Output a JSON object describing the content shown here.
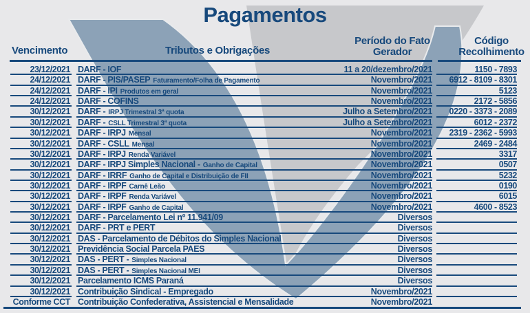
{
  "title": "Pagamentos",
  "header": {
    "vencimento": "Vencimento",
    "tributos": "Tributos e Obrigações",
    "periodo_line1": "Período do Fato",
    "periodo_line2": "Gerador",
    "codigo_line1": "Código",
    "codigo_line2": "Recolhimento"
  },
  "rows": [
    {
      "date": "23/12/2021",
      "name": "DARF - IOF",
      "sub": "",
      "period": "11 a 20/dezembro/2021",
      "code": "1150 - 7893"
    },
    {
      "date": "24/12/2021",
      "name": "DARF - PIS/PASEP",
      "sub": "Faturamento/Folha de Pagamento",
      "period": "Novembro/2021",
      "code": "6912 - 8109 - 8301"
    },
    {
      "date": "24/12/2021",
      "name": "DARF - IPI",
      "sub": "Produtos em geral",
      "period": "Novembro/2021",
      "code": "5123"
    },
    {
      "date": "24/12/2021",
      "name": "DARF - COFINS",
      "sub": "",
      "period": "Novembro/2021",
      "code": "2172 - 5856"
    },
    {
      "date": "30/12/2021",
      "name": "DARF -",
      "sub": "IRPJ Trimestral 3ª quota",
      "period": "Julho a Setembro/2021",
      "code": "0220 - 3373 - 2089"
    },
    {
      "date": "30/12/2021",
      "name": "DARF -",
      "sub": "CSLL Trimestral 3ª quota",
      "period": "Julho a Setembro/2021",
      "code": "6012 - 2372"
    },
    {
      "date": "30/12/2021",
      "name": "DARF - IRPJ",
      "sub": "Mensal",
      "period": "Novembro/2021",
      "code": "2319 - 2362 - 5993"
    },
    {
      "date": "30/12/2021",
      "name": "DARF - CSLL",
      "sub": "Mensal",
      "period": "Novembro/2021",
      "code": "2469 - 2484"
    },
    {
      "date": "30/12/2021",
      "name": "DARF - IRPJ",
      "sub": "Renda Variável",
      "period": "Novembro/2021",
      "code": "3317"
    },
    {
      "date": "30/12/2021",
      "name": "DARF - IRPJ Simples Nacional -",
      "sub": "Ganho de Capital",
      "period": "Novembro/2021",
      "code": "0507"
    },
    {
      "date": "30/12/2021",
      "name": "DARF - IRRF",
      "sub": "Ganho de Capital e Distribuição de FII",
      "period": "Novembro/2021",
      "code": "5232"
    },
    {
      "date": "30/12/2021",
      "name": "DARF - IRPF",
      "sub": "Carnê Leão",
      "period": "Novembro/2021",
      "code": "0190"
    },
    {
      "date": "30/12/2021",
      "name": "DARF - IRPF",
      "sub": "Renda Variável",
      "period": "Novembro/2021",
      "code": "6015"
    },
    {
      "date": "30/12/2021",
      "name": "DARF - IRPF",
      "sub": "Ganho de Capital",
      "period": "Novembro/2021",
      "code": "4600 - 8523"
    },
    {
      "date": "30/12/2021",
      "name": "DARF - Parcelamento Lei nº 11.941/09",
      "sub": "",
      "period": "Diversos",
      "code": ""
    },
    {
      "date": "30/12/2021",
      "name": "DARF - PRT e PERT",
      "sub": "",
      "period": "Diversos",
      "code": ""
    },
    {
      "date": "30/12/2021",
      "name": "DAS - Parcelamento de Débitos do Simples Nacional",
      "sub": "",
      "period": "Diversos",
      "code": ""
    },
    {
      "date": "30/12/2021",
      "name": "Previdência Social Parcela PAES",
      "sub": "",
      "period": "Diversos",
      "code": ""
    },
    {
      "date": "30/12/2021",
      "name": "DAS - PERT -",
      "sub": "Simples Nacional",
      "period": "Diversos",
      "code": ""
    },
    {
      "date": "30/12/2021",
      "name": "DAS - PERT -",
      "sub": "Simples Nacional MEI",
      "period": "Diversos",
      "code": ""
    },
    {
      "date": "30/12/2021",
      "name": "Parcelamento ICMS Paraná",
      "sub": "",
      "period": "Diversos",
      "code": ""
    },
    {
      "date": "30/12/2021",
      "name": "Contribuição Sindical - Empregado",
      "sub": "",
      "period": "Novembro/2021",
      "code": ""
    },
    {
      "date": "Conforme CCT",
      "name": "Contribuição Confederativa, Assistencial e Mensalidade",
      "sub": "",
      "period": "Novembro/2021",
      "code": ""
    }
  ],
  "colors": {
    "text_navy": "#17497c",
    "watermark_blue": "#8ca2b7",
    "watermark_gray": "#c7c8cb",
    "background": "#e8e8ea"
  }
}
